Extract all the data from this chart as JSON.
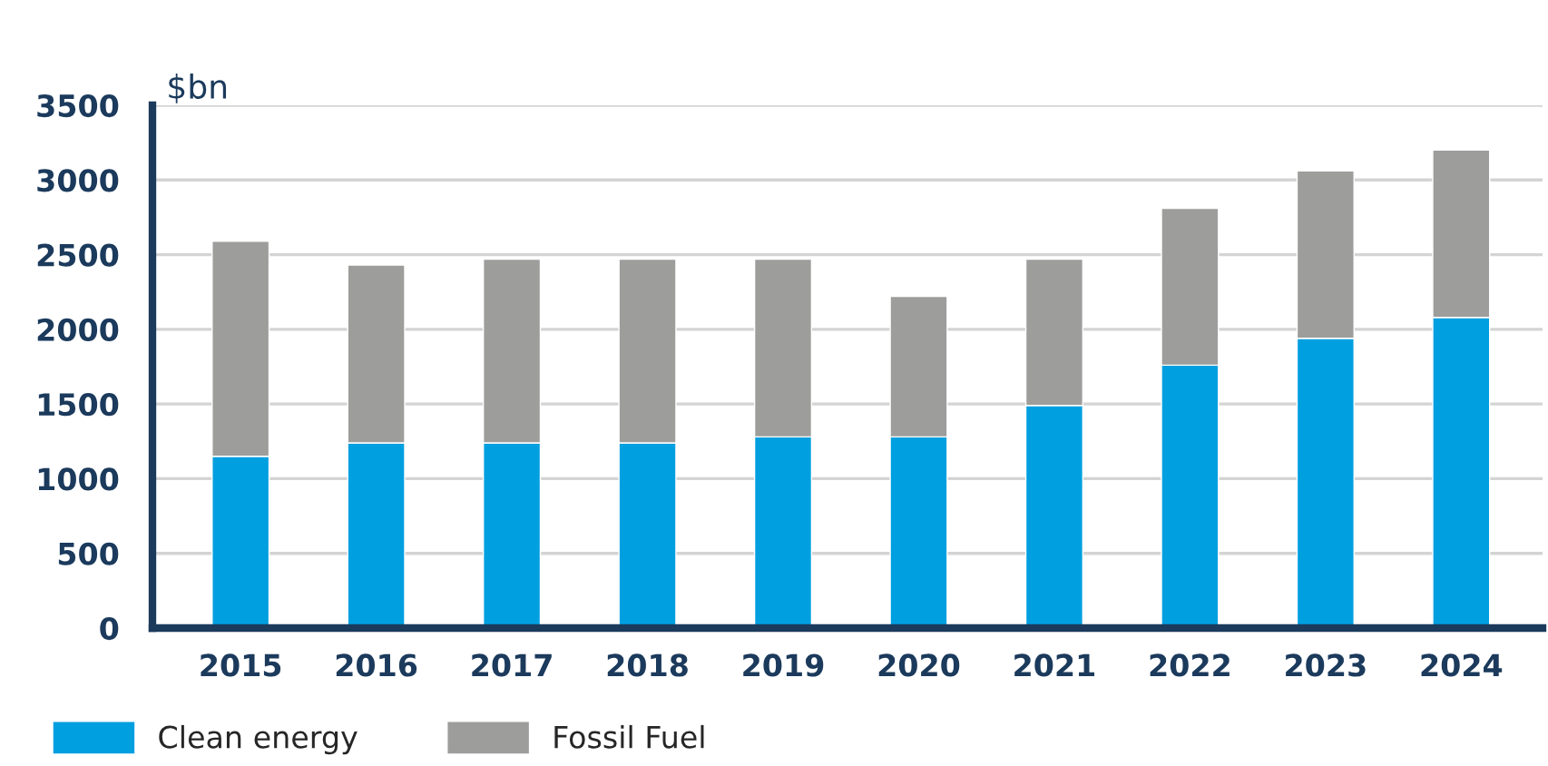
{
  "chart_data": {
    "type": "bar",
    "stacked": true,
    "ylabel": "$bn",
    "categories": [
      "2015",
      "2016",
      "2017",
      "2018",
      "2019",
      "2020",
      "2021",
      "2022",
      "2023",
      "2024"
    ],
    "series": [
      {
        "name": "Clean energy",
        "color": "#009fe0",
        "values": [
          1150,
          1240,
          1240,
          1240,
          1280,
          1280,
          1490,
          1760,
          1940,
          2080
        ]
      },
      {
        "name": "Fossil Fuel",
        "color": "#9d9d9c",
        "values": [
          1440,
          1190,
          1230,
          1230,
          1190,
          940,
          980,
          1050,
          1120,
          1120
        ]
      }
    ],
    "ylim": [
      0,
      3500
    ],
    "yticks": [
      0,
      500,
      1000,
      1500,
      2000,
      2500,
      3000,
      3500
    ],
    "grid": "y",
    "legend": "bottom left"
  }
}
